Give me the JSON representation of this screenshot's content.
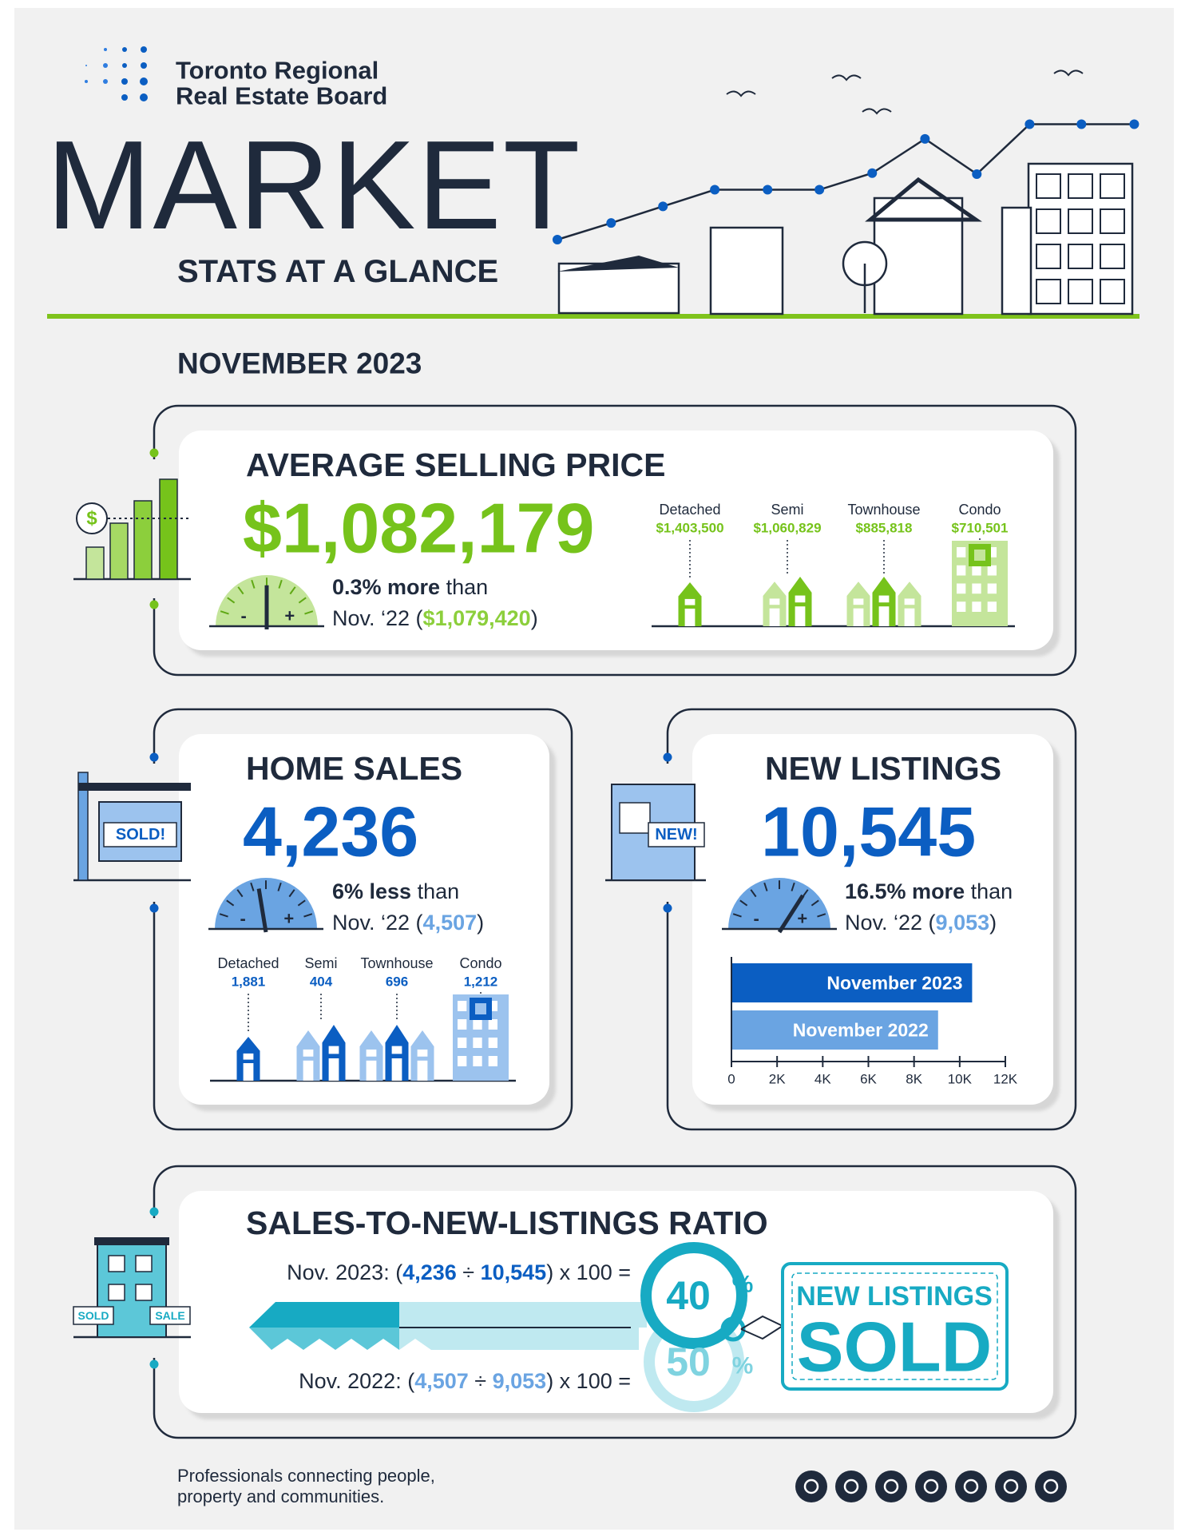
{
  "header": {
    "org_line1": "Toronto Regional",
    "org_line2": "Real Estate Board",
    "title": "MARKET",
    "subtitle": "STATS AT A GLANCE",
    "period": "NOVEMBER 2023"
  },
  "gauge": {
    "minus": "-",
    "plus": "+"
  },
  "icons": {
    "price_sign": "$",
    "sold_sign": "SOLD!",
    "new_sign": "NEW!",
    "building_sold": "SOLD",
    "building_sale": "SALE"
  },
  "average_price": {
    "title": "AVERAGE SELLING PRICE",
    "value": "$1,082,179",
    "change": "0.3% more",
    "change_suffix": "than",
    "compare_prefix": "Nov. ‘22 (",
    "compare_value": "$1,079,420",
    "compare_suffix": ")",
    "categories": [
      {
        "label": "Detached",
        "value": "$1,403,500"
      },
      {
        "label": "Semi",
        "value": "$1,060,829"
      },
      {
        "label": "Townhouse",
        "value": "$885,818"
      },
      {
        "label": "Condo",
        "value": "$710,501"
      }
    ]
  },
  "home_sales": {
    "title": "HOME SALES",
    "value": "4,236",
    "change": "6% less",
    "change_suffix": "than",
    "compare_prefix": "Nov. ‘22 (",
    "compare_value": "4,507",
    "compare_suffix": ")",
    "categories": [
      {
        "label": "Detached",
        "value": "1,881"
      },
      {
        "label": "Semi",
        "value": "404"
      },
      {
        "label": "Townhouse",
        "value": "696"
      },
      {
        "label": "Condo",
        "value": "1,212"
      }
    ]
  },
  "new_listings": {
    "title": "NEW LISTINGS",
    "value": "10,545",
    "change": "16.5% more",
    "change_suffix": "than",
    "compare_prefix": "Nov. ‘22 (",
    "compare_value": "9,053",
    "compare_suffix": ")",
    "chart": {
      "type": "bar",
      "orientation": "horizontal",
      "categories": [
        "November 2023",
        "November 2022"
      ],
      "values": [
        10545,
        9053
      ],
      "colors": [
        "#0b5ec2",
        "#6aa4e2"
      ],
      "xlim": [
        0,
        12000
      ],
      "xticks": [
        0,
        {
          "value": 2000,
          "label": "2K"
        },
        {
          "value": 4000,
          "label": "4K"
        },
        {
          "value": 6000,
          "label": "6K"
        },
        {
          "value": 8000,
          "label": "8K"
        },
        {
          "value": 10000,
          "label": "10K"
        },
        {
          "value": 12000,
          "label": "12K"
        }
      ]
    }
  },
  "ratio": {
    "title": "SALES-TO-NEW-LISTINGS RATIO",
    "line_2023": [
      "Nov. 2023: (",
      "4,236",
      " ÷ ",
      "10,545",
      ") x 100 ="
    ],
    "line_2022": [
      "Nov. 2022: (",
      "4,507",
      " ÷ ",
      "9,053",
      ") x 100 ="
    ],
    "pct_2023": "40",
    "pct_2022": "50",
    "pct_sign": "%",
    "tag_top": "NEW LISTINGS",
    "tag_bottom": "SOLD"
  },
  "footer": {
    "line1": "Professionals connecting people,",
    "line2": "property and communities."
  }
}
